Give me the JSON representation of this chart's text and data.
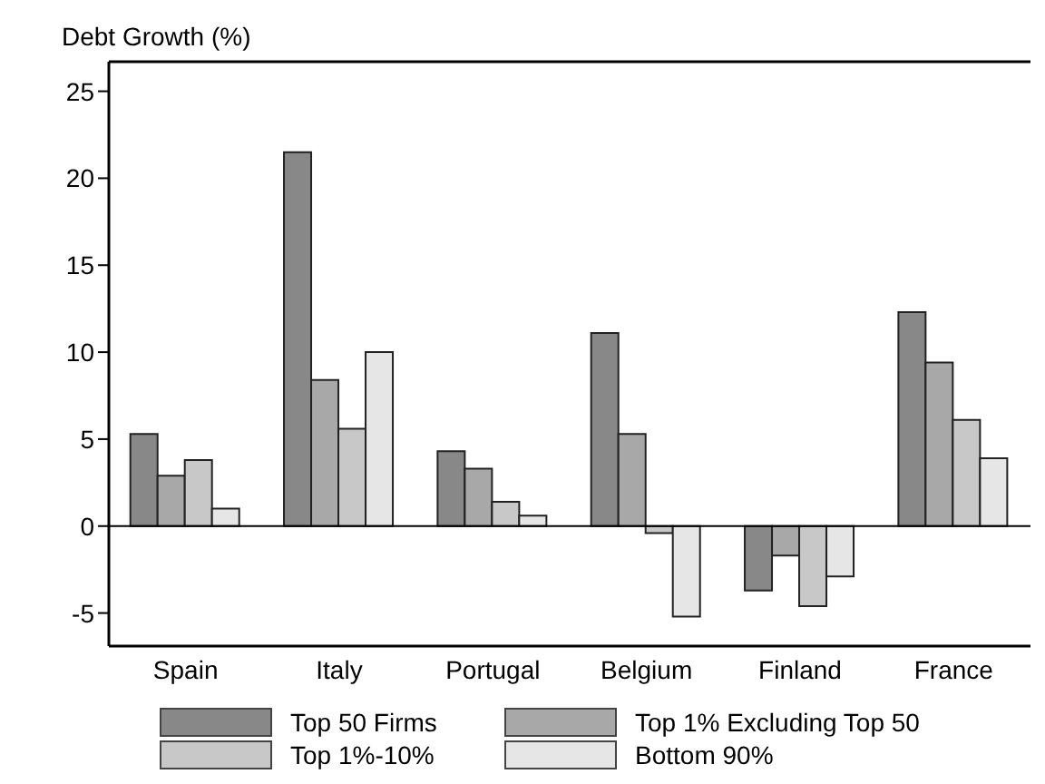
{
  "chart_data": {
    "type": "bar",
    "ylabel": "Debt Growth (%)",
    "categories": [
      "Spain",
      "Italy",
      "Portugal",
      "Belgium",
      "Finland",
      "France"
    ],
    "series": [
      {
        "name": "Top 50 Firms",
        "color": "#888888",
        "values": [
          5.3,
          21.5,
          4.3,
          11.1,
          -3.7,
          12.3
        ]
      },
      {
        "name": "Top 1% Excluding Top 50",
        "color": "#a8a8a8",
        "values": [
          2.9,
          8.4,
          3.3,
          5.3,
          -1.7,
          9.4
        ]
      },
      {
        "name": "Top 1%-10%",
        "color": "#c8c8c8",
        "values": [
          3.8,
          5.6,
          1.4,
          -0.4,
          -4.6,
          6.1
        ]
      },
      {
        "name": "Bottom 90%",
        "color": "#e6e6e6",
        "values": [
          1.0,
          10.0,
          0.6,
          -5.2,
          -2.9,
          3.9
        ]
      }
    ],
    "ylim": [
      -6.9,
      26.7
    ],
    "yticks": [
      -5,
      0,
      5,
      10,
      15,
      20,
      25
    ],
    "ref_lines": [
      {
        "axis": "y",
        "value": 0,
        "color": "#000000"
      }
    ],
    "legend": "bottom"
  }
}
